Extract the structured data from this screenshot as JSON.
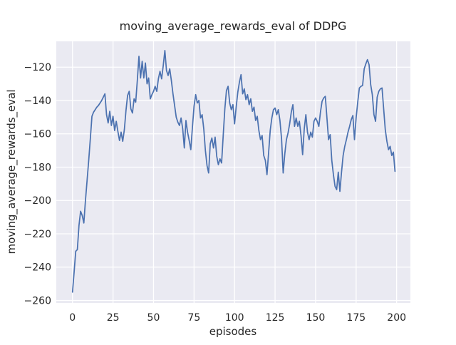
{
  "figure": {
    "kind": "matplotlib-seaborn-darkgrid",
    "background": "#ffffff"
  },
  "chart_data": {
    "type": "line",
    "title": "moving_average_rewards_eval of DDPG",
    "xlabel": "episodes",
    "ylabel": "moving_average_rewards_eval",
    "x_ticks": [
      0,
      25,
      50,
      75,
      100,
      125,
      150,
      175,
      200
    ],
    "y_ticks": [
      -120,
      -140,
      -160,
      -180,
      -200,
      -220,
      -240,
      -260
    ],
    "xlim": [
      -10,
      208.5
    ],
    "ylim": [
      -261.5,
      -104.5
    ],
    "grid": true,
    "legend": null,
    "colors": {
      "line": "#4c72b0",
      "plot_background": "#eaeaf2",
      "gridline": "#ffffff",
      "text": "#262626"
    },
    "series": [
      {
        "name": "moving_average_rewards_eval",
        "x": {
          "start": 0,
          "step": 1,
          "count": 200
        },
        "y": [
          -255,
          -243,
          -230.5,
          -229.5,
          -215,
          -206.5,
          -209,
          -213.5,
          -200,
          -188,
          -176,
          -163,
          -149.5,
          -147,
          -145.5,
          -144,
          -143,
          -141.5,
          -140,
          -138,
          -136,
          -148.5,
          -153.5,
          -146.5,
          -155,
          -149.5,
          -158,
          -152.5,
          -158.5,
          -164,
          -159,
          -164.5,
          -157.5,
          -146,
          -137,
          -134.5,
          -145,
          -147.5,
          -139,
          -141,
          -128,
          -113.5,
          -126.5,
          -116.5,
          -126.5,
          -117.5,
          -130,
          -126.5,
          -139,
          -136.5,
          -134.5,
          -131.5,
          -134.5,
          -127,
          -122.5,
          -127,
          -119,
          -110,
          -122,
          -125,
          -121,
          -128,
          -136,
          -143,
          -150,
          -153,
          -155,
          -150.5,
          -157,
          -168.5,
          -152,
          -159,
          -164,
          -169.5,
          -156,
          -143.5,
          -136.5,
          -141.5,
          -140,
          -150.5,
          -148.5,
          -157,
          -170,
          -179,
          -183.5,
          -166,
          -162.5,
          -168.5,
          -162,
          -173.5,
          -178.5,
          -175,
          -177.5,
          -161,
          -145,
          -134,
          -131.5,
          -141.5,
          -145.5,
          -142.5,
          -154,
          -144,
          -135,
          -129,
          -124.5,
          -136,
          -133,
          -139.5,
          -136.5,
          -142.5,
          -139,
          -146.5,
          -144,
          -152,
          -149.5,
          -158,
          -163.5,
          -161,
          -173,
          -176,
          -184.5,
          -171.5,
          -158,
          -150.5,
          -145.5,
          -144.5,
          -148.5,
          -145.5,
          -152,
          -163,
          -183.5,
          -172,
          -163.5,
          -159.5,
          -154,
          -147,
          -142.5,
          -155.5,
          -150.5,
          -155.5,
          -152.5,
          -161,
          -172.5,
          -157,
          -148.5,
          -159,
          -163.5,
          -159,
          -162,
          -152.5,
          -150.5,
          -152.5,
          -155.5,
          -147,
          -140.5,
          -138.5,
          -137.5,
          -150.5,
          -163.5,
          -160.5,
          -176,
          -184.5,
          -191.5,
          -193.5,
          -183,
          -194.5,
          -183,
          -173,
          -167.5,
          -163.5,
          -159,
          -155.5,
          -151.5,
          -149,
          -163.5,
          -150.5,
          -141,
          -132.5,
          -131.5,
          -131,
          -121,
          -118,
          -115.5,
          -118.5,
          -130.5,
          -136.5,
          -148.5,
          -152.5,
          -138,
          -134.5,
          -133,
          -132.5,
          -145,
          -157.5,
          -164.5,
          -169.5,
          -167.5,
          -173,
          -171,
          -182.5
        ]
      }
    ]
  }
}
